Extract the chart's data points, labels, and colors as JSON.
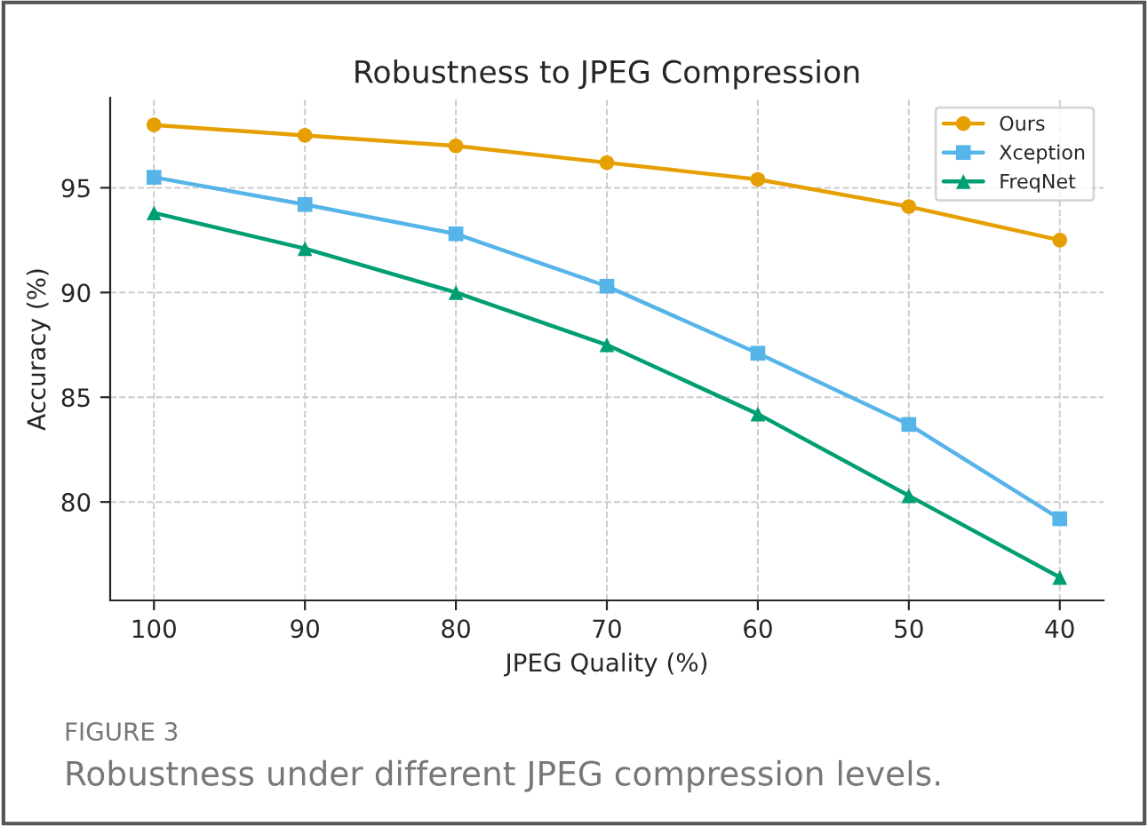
{
  "chart_data": {
    "type": "line",
    "title": "Robustness to JPEG Compression",
    "xlabel": "JPEG Quality (%)",
    "ylabel": "Accuracy (%)",
    "x": [
      100,
      90,
      80,
      70,
      60,
      50,
      40
    ],
    "series": [
      {
        "name": "Ours",
        "color": "#e69f00",
        "marker": "circle",
        "values": [
          98.0,
          97.5,
          97.0,
          96.2,
          95.4,
          94.1,
          92.5
        ]
      },
      {
        "name": "Xception",
        "color": "#56b4e9",
        "marker": "square",
        "values": [
          95.5,
          94.2,
          92.8,
          90.3,
          87.1,
          83.7,
          79.2
        ]
      },
      {
        "name": "FreqNet",
        "color": "#009e73",
        "marker": "triangle",
        "values": [
          93.8,
          92.1,
          90.0,
          87.5,
          84.2,
          80.3,
          76.4
        ]
      }
    ],
    "xlim": [
      102.9,
      37.1
    ],
    "xticks": [
      100,
      90,
      80,
      70,
      60,
      50,
      40
    ],
    "ylim": [
      75.3,
      99.3
    ],
    "yticks": [
      80,
      85,
      90,
      95
    ],
    "grid": true,
    "legend": "top right",
    "line_style": "solid",
    "annotations": [
      "FIGURE 3",
      "Robustness under different JPEG compression levels."
    ]
  }
}
